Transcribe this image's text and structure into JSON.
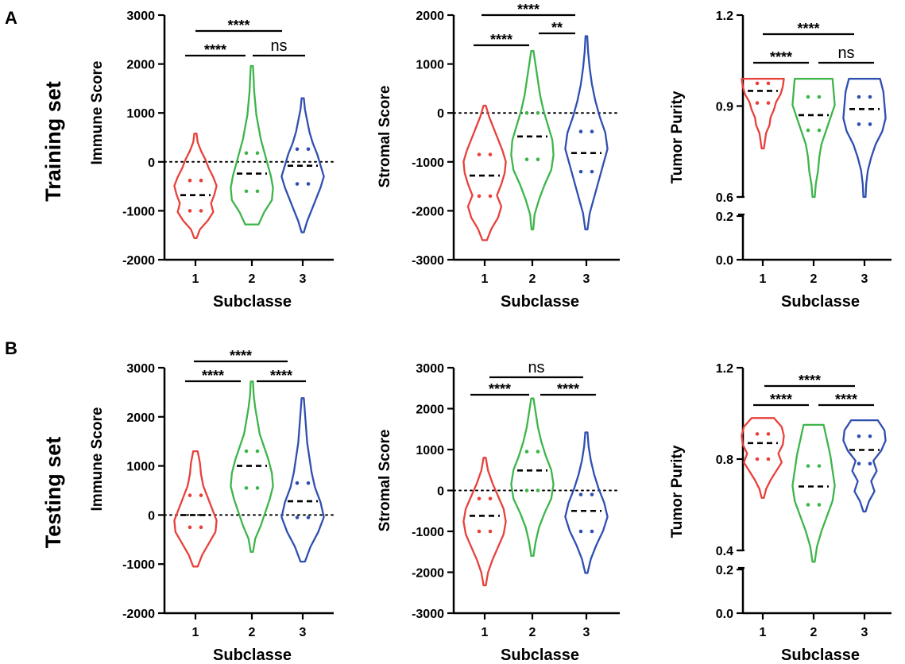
{
  "panel_labels": [
    "A",
    "B"
  ],
  "row_labels": [
    "Training set",
    "Testing set"
  ],
  "colors": {
    "1": "#e8403a",
    "2": "#3db54a",
    "3": "#2f4fb0",
    "axis": "#000000"
  },
  "chart_data": [
    {
      "id": "A-immune",
      "type": "violin",
      "row": "Training set",
      "categories": [
        "1",
        "2",
        "3"
      ],
      "xlabel": "Subclasse",
      "ylabel": "Immune Score",
      "yticks": [
        "-2000",
        "-1000",
        "0",
        "1000",
        "2000",
        "3000"
      ],
      "ylim": [
        -2000,
        3000
      ],
      "reference_line": 0,
      "series": [
        {
          "name": "1",
          "min": -1560,
          "max": 580,
          "median": -680,
          "q1": -1000,
          "q3": -380,
          "widths": [
            0.05,
            0.2,
            0.55,
            0.8,
            0.7,
            0.85,
            0.95,
            0.8,
            0.6,
            0.45,
            0.25,
            0.1,
            0.05
          ]
        },
        {
          "name": "2",
          "min": -1280,
          "max": 1960,
          "median": -240,
          "q1": -600,
          "q3": 180,
          "widths": [
            0.3,
            0.55,
            0.9,
            0.95,
            0.85,
            0.7,
            0.55,
            0.4,
            0.3,
            0.2,
            0.15,
            0.1,
            0.08,
            0.05
          ]
        },
        {
          "name": "3",
          "min": -1440,
          "max": 1300,
          "median": -80,
          "q1": -450,
          "q3": 260,
          "widths": [
            0.05,
            0.2,
            0.4,
            0.6,
            0.8,
            0.95,
            0.8,
            0.65,
            0.45,
            0.3,
            0.2,
            0.1,
            0.05
          ]
        }
      ],
      "comparisons": [
        {
          "pair": [
            "1",
            "2"
          ],
          "label": "****"
        },
        {
          "pair": [
            "2",
            "3"
          ],
          "label": "ns"
        },
        {
          "pair": [
            "1",
            "3"
          ],
          "label": "****"
        }
      ]
    },
    {
      "id": "A-stromal",
      "type": "violin",
      "row": "Training set",
      "categories": [
        "1",
        "2",
        "3"
      ],
      "xlabel": "Subclasse",
      "ylabel": "Stromal Score",
      "yticks": [
        "-3000",
        "-2000",
        "-1000",
        "0",
        "1000",
        "2000"
      ],
      "ylim": [
        -3000,
        2000
      ],
      "reference_line": 0,
      "series": [
        {
          "name": "1",
          "min": -2600,
          "max": 150,
          "median": -1280,
          "q1": -1700,
          "q3": -850,
          "widths": [
            0.1,
            0.3,
            0.6,
            0.75,
            0.55,
            0.75,
            0.9,
            0.95,
            0.8,
            0.6,
            0.4,
            0.2,
            0.05
          ]
        },
        {
          "name": "2",
          "min": -2380,
          "max": 1270,
          "median": -480,
          "q1": -950,
          "q3": 0,
          "widths": [
            0.04,
            0.1,
            0.3,
            0.55,
            0.85,
            0.95,
            0.9,
            0.7,
            0.5,
            0.35,
            0.25,
            0.15,
            0.05
          ]
        },
        {
          "name": "3",
          "min": -2380,
          "max": 1570,
          "median": -820,
          "q1": -1200,
          "q3": -380,
          "widths": [
            0.05,
            0.15,
            0.35,
            0.55,
            0.75,
            0.95,
            0.85,
            0.6,
            0.4,
            0.25,
            0.15,
            0.08,
            0.04
          ]
        }
      ],
      "comparisons": [
        {
          "pair": [
            "1",
            "2"
          ],
          "label": "****"
        },
        {
          "pair": [
            "2",
            "3"
          ],
          "label": "**"
        },
        {
          "pair": [
            "1",
            "3"
          ],
          "label": "****"
        }
      ]
    },
    {
      "id": "A-purity",
      "type": "violin",
      "row": "Training set",
      "categories": [
        "1",
        "2",
        "3"
      ],
      "xlabel": "Subclasse",
      "ylabel": "Tumor Purity",
      "yticks": [
        "0.0",
        "0.2",
        "0.6",
        "0.9",
        "1.2"
      ],
      "ylim": [
        0,
        1.2
      ],
      "axis_break": [
        0.2,
        0.6
      ],
      "series": [
        {
          "name": "1",
          "min": 0.76,
          "max": 0.99,
          "median": 0.95,
          "q1": 0.91,
          "q3": 0.975,
          "widths": [
            0.05,
            0.1,
            0.15,
            0.3,
            0.35,
            0.5,
            0.6,
            0.8,
            0.9,
            0.95
          ]
        },
        {
          "name": "2",
          "min": 0.6,
          "max": 0.99,
          "median": 0.87,
          "q1": 0.82,
          "q3": 0.93,
          "widths": [
            0.05,
            0.1,
            0.2,
            0.25,
            0.35,
            0.55,
            0.75,
            0.95,
            0.9,
            0.85
          ]
        },
        {
          "name": "3",
          "min": 0.6,
          "max": 0.99,
          "median": 0.89,
          "q1": 0.84,
          "q3": 0.93,
          "widths": [
            0.05,
            0.08,
            0.15,
            0.3,
            0.5,
            0.8,
            0.95,
            0.9,
            0.85,
            0.7
          ]
        }
      ],
      "comparisons": [
        {
          "pair": [
            "1",
            "2"
          ],
          "label": "****"
        },
        {
          "pair": [
            "2",
            "3"
          ],
          "label": "ns"
        },
        {
          "pair": [
            "1",
            "3"
          ],
          "label": "****"
        }
      ]
    },
    {
      "id": "B-immune",
      "type": "violin",
      "row": "Testing set",
      "categories": [
        "1",
        "2",
        "3"
      ],
      "xlabel": "Subclasse",
      "ylabel": "Immune Score",
      "yticks": [
        "-2000",
        "-1000",
        "0",
        "1000",
        "2000",
        "3000"
      ],
      "ylim": [
        -2000,
        3000
      ],
      "reference_line": 0,
      "series": [
        {
          "name": "1",
          "min": -1050,
          "max": 1300,
          "median": 0,
          "q1": -250,
          "q3": 400,
          "widths": [
            0.1,
            0.3,
            0.6,
            0.9,
            0.95,
            0.75,
            0.55,
            0.35,
            0.25,
            0.2,
            0.1
          ]
        },
        {
          "name": "2",
          "min": -750,
          "max": 2720,
          "median": 1000,
          "q1": 550,
          "q3": 1300,
          "widths": [
            0.05,
            0.15,
            0.4,
            0.6,
            0.8,
            0.95,
            0.9,
            0.75,
            0.55,
            0.35,
            0.25,
            0.15,
            0.08,
            0.05
          ]
        },
        {
          "name": "3",
          "min": -950,
          "max": 2380,
          "median": 280,
          "q1": -50,
          "q3": 650,
          "widths": [
            0.1,
            0.35,
            0.7,
            0.95,
            0.8,
            0.55,
            0.4,
            0.3,
            0.2,
            0.15,
            0.1,
            0.05
          ]
        }
      ],
      "comparisons": [
        {
          "pair": [
            "1",
            "2"
          ],
          "label": "****"
        },
        {
          "pair": [
            "2",
            "3"
          ],
          "label": "****"
        },
        {
          "pair": [
            "1",
            "3"
          ],
          "label": "****"
        }
      ]
    },
    {
      "id": "B-stromal",
      "type": "violin",
      "row": "Testing set",
      "categories": [
        "1",
        "2",
        "3"
      ],
      "xlabel": "Subclasse",
      "ylabel": "Stromal Score",
      "yticks": [
        "-3000",
        "-2000",
        "-1000",
        "0",
        "1000",
        "2000",
        "3000"
      ],
      "ylim": [
        -3000,
        3000
      ],
      "reference_line": 0,
      "series": [
        {
          "name": "1",
          "min": -2320,
          "max": 800,
          "median": -620,
          "q1": -1000,
          "q3": -200,
          "widths": [
            0.05,
            0.15,
            0.35,
            0.6,
            0.85,
            0.95,
            0.85,
            0.6,
            0.35,
            0.15,
            0.05
          ]
        },
        {
          "name": "2",
          "min": -1600,
          "max": 2250,
          "median": 490,
          "q1": 0,
          "q3": 950,
          "widths": [
            0.05,
            0.15,
            0.3,
            0.55,
            0.85,
            0.95,
            0.85,
            0.6,
            0.4,
            0.25,
            0.15,
            0.05
          ]
        },
        {
          "name": "3",
          "min": -2020,
          "max": 1420,
          "median": -500,
          "q1": -1000,
          "q3": -100,
          "widths": [
            0.05,
            0.2,
            0.45,
            0.75,
            0.95,
            0.8,
            0.55,
            0.35,
            0.2,
            0.1,
            0.05
          ]
        }
      ],
      "comparisons": [
        {
          "pair": [
            "1",
            "2"
          ],
          "label": "****"
        },
        {
          "pair": [
            "2",
            "3"
          ],
          "label": "****"
        },
        {
          "pair": [
            "1",
            "3"
          ],
          "label": "ns"
        }
      ]
    },
    {
      "id": "B-purity",
      "type": "violin",
      "row": "Testing set",
      "categories": [
        "1",
        "2",
        "3"
      ],
      "xlabel": "Subclasse",
      "ylabel": "Tumor Purity",
      "yticks": [
        "0.0",
        "0.2",
        "0.4",
        "0.8",
        "1.2"
      ],
      "ylim": [
        0,
        1.2
      ],
      "axis_break": [
        0.2,
        0.4
      ],
      "series": [
        {
          "name": "1",
          "min": 0.63,
          "max": 0.98,
          "median": 0.87,
          "q1": 0.8,
          "q3": 0.91,
          "widths": [
            0.05,
            0.15,
            0.35,
            0.6,
            0.85,
            0.7,
            0.9,
            0.95,
            0.85,
            0.5
          ]
        },
        {
          "name": "2",
          "min": 0.35,
          "max": 0.95,
          "median": 0.68,
          "q1": 0.6,
          "q3": 0.77,
          "widths": [
            0.05,
            0.15,
            0.35,
            0.6,
            0.85,
            0.95,
            0.85,
            0.75,
            0.6,
            0.45
          ]
        },
        {
          "name": "3",
          "min": 0.57,
          "max": 0.97,
          "median": 0.84,
          "q1": 0.78,
          "q3": 0.9,
          "widths": [
            0.05,
            0.2,
            0.45,
            0.3,
            0.55,
            0.4,
            0.75,
            0.95,
            0.9,
            0.6
          ]
        }
      ],
      "comparisons": [
        {
          "pair": [
            "1",
            "2"
          ],
          "label": "****"
        },
        {
          "pair": [
            "2",
            "3"
          ],
          "label": "****"
        },
        {
          "pair": [
            "1",
            "3"
          ],
          "label": "****"
        }
      ]
    }
  ]
}
